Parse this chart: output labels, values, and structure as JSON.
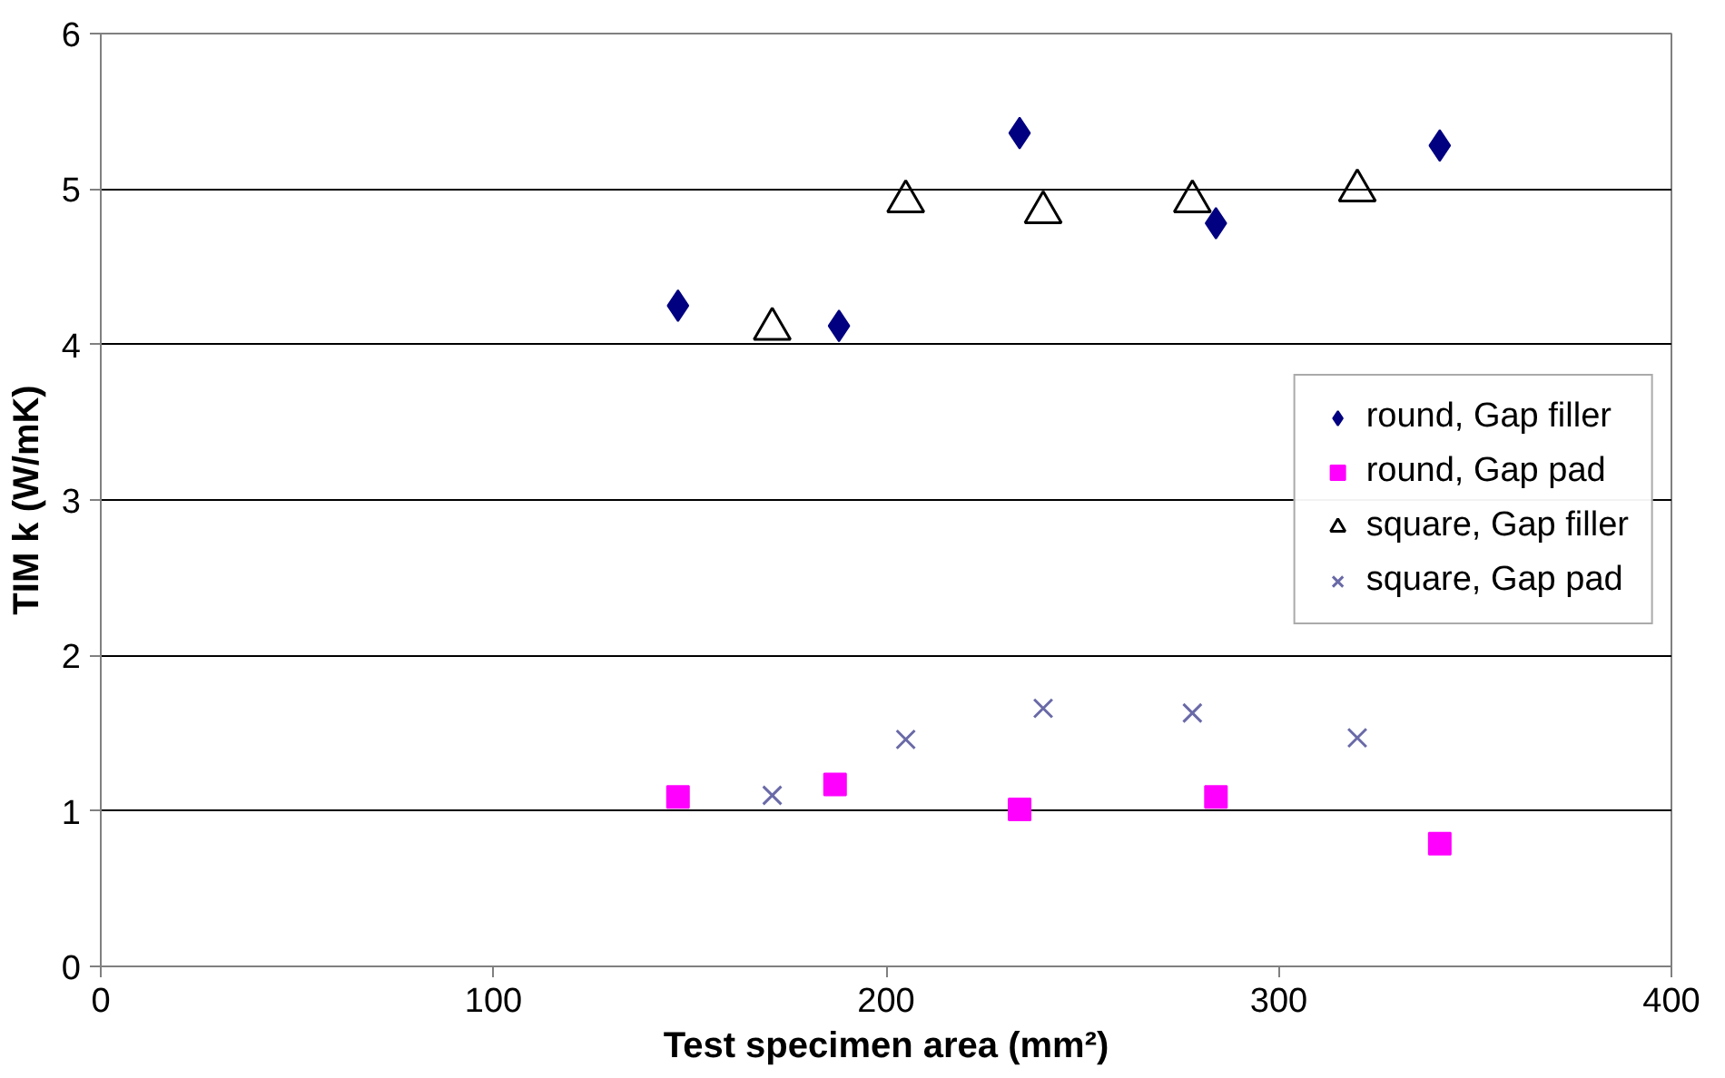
{
  "chart_data": {
    "type": "scatter",
    "xlabel": "Test specimen area (mm²)",
    "ylabel": "TIM k (W/mK)",
    "xlim": [
      0,
      400
    ],
    "xticks": [
      0,
      100,
      200,
      300,
      400
    ],
    "ylim": [
      0,
      6
    ],
    "yticks": [
      0,
      1,
      2,
      3,
      4,
      5,
      6
    ],
    "grid": "y",
    "legend": "right",
    "series": [
      {
        "name": "round, Gap filler",
        "color": "#000080",
        "marker": "diamond",
        "x": [
          147,
          188,
          234,
          284,
          341
        ],
        "values": [
          4.25,
          4.12,
          5.36,
          4.78,
          5.28
        ]
      },
      {
        "name": "round, Gap pad",
        "color": "#ff00ff",
        "marker": "square",
        "x": [
          147,
          187,
          234,
          284,
          341
        ],
        "values": [
          1.09,
          1.17,
          1.01,
          1.09,
          0.79
        ]
      },
      {
        "name": "square, Gap filler",
        "color": "#000000",
        "marker": "triangle",
        "x": [
          171,
          205,
          240,
          278,
          320
        ],
        "values": [
          4.1,
          4.92,
          4.85,
          4.92,
          4.99
        ]
      },
      {
        "name": "square, Gap pad",
        "color": "#6a6aa8",
        "marker": "cross",
        "x": [
          171,
          205,
          240,
          278,
          320
        ],
        "values": [
          1.1,
          1.46,
          1.66,
          1.63,
          1.47
        ]
      }
    ]
  }
}
